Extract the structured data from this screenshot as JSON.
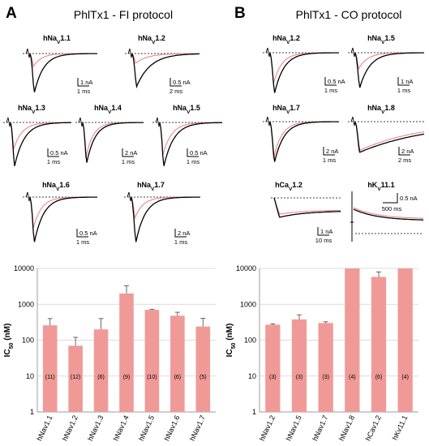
{
  "colors": {
    "control_trace": "#000000",
    "toxin_trace": "#e8888a",
    "bar": "#f09a97",
    "grid": "#d0d0d0"
  },
  "panel_a": {
    "letter": "A",
    "title": "PhlTx1 - FI protocol",
    "traces": [
      {
        "channel": "hNaV1.1",
        "label_main": "hNa",
        "label_sub": "V",
        "label_rest": "1.1",
        "scale_current": "1 nA",
        "scale_time": "1 ms"
      },
      {
        "channel": "hNaV1.2",
        "label_main": "hNa",
        "label_sub": "V",
        "label_rest": "1.2",
        "scale_current": "0.5 nA",
        "scale_time": "2 ms"
      },
      {
        "channel": "hNaV1.3",
        "label_main": "hNa",
        "label_sub": "V",
        "label_rest": "1.3",
        "scale_current": "0.5 nA",
        "scale_time": "1 ms"
      },
      {
        "channel": "hNaV1.4",
        "label_main": "hNa",
        "label_sub": "V",
        "label_rest": "1.4",
        "scale_current": "2 nA",
        "scale_time": "1 ms"
      },
      {
        "channel": "hNaV1.5",
        "label_main": "hNa",
        "label_sub": "V",
        "label_rest": "1.5",
        "scale_current": "0.5 nA",
        "scale_time": "1 ms"
      },
      {
        "channel": "hNaV1.6",
        "label_main": "hNa",
        "label_sub": "V",
        "label_rest": "1.6",
        "scale_current": "0.5 nA",
        "scale_time": "1 ms"
      },
      {
        "channel": "hNaV1.7",
        "label_main": "hNa",
        "label_sub": "V",
        "label_rest": "1.7",
        "scale_current": "2 nA",
        "scale_time": "1 ms"
      }
    ]
  },
  "panel_b": {
    "letter": "B",
    "title": "PhlTx1 - CO protocol",
    "traces": [
      {
        "channel": "hNaV1.2",
        "label_main": "hNa",
        "label_sub": "V",
        "label_rest": "1.2",
        "scale_current": "0.5 nA",
        "scale_time": "1 ms"
      },
      {
        "channel": "hNaV1.5",
        "label_main": "hNa",
        "label_sub": "V",
        "label_rest": "1.5",
        "scale_current": "1 nA",
        "scale_time": "1 ms"
      },
      {
        "channel": "hNaV1.7",
        "label_main": "hNa",
        "label_sub": "V",
        "label_rest": "1.7",
        "scale_current": "2 nA",
        "scale_time": "1 ms"
      },
      {
        "channel": "hNaV1.8",
        "label_main": "hNa",
        "label_sub": "V",
        "label_rest": "1.8",
        "scale_current": "2 nA",
        "scale_time": "2 ms"
      },
      {
        "channel": "hCaV1.2",
        "label_main": "hCa",
        "label_sub": "V",
        "label_rest": "1.2",
        "scale_current": "1 nA",
        "scale_time": "10 ms"
      },
      {
        "channel": "hKV11.1",
        "label_main": "hK",
        "label_sub": "V",
        "label_rest": "11.1",
        "scale_current": "0.5 nA",
        "scale_time": "500 ms"
      }
    ]
  },
  "chart_data": [
    {
      "type": "bar",
      "panel": "A",
      "ylabel_main": "IC",
      "ylabel_sub": "50",
      "ylabel_rest": " (nM)",
      "yscale": "log",
      "ylim": [
        1,
        10000
      ],
      "yticks": [
        "1",
        "10",
        "100",
        "1000",
        "10000"
      ],
      "grid": true,
      "categories": [
        "hNav1.1",
        "hNav1.2",
        "hNav1.3",
        "hNav1.4",
        "hNav1.5",
        "hNav1.6",
        "hNav1.7"
      ],
      "values": [
        260,
        70,
        200,
        2000,
        700,
        480,
        240
      ],
      "errors": [
        140,
        50,
        200,
        1300,
        30,
        120,
        170
      ],
      "n_labels": [
        "(11)",
        "(12)",
        "(6)",
        "(9)",
        "(10)",
        "(6)",
        "(5)"
      ]
    },
    {
      "type": "bar",
      "panel": "B",
      "ylabel_main": "IC",
      "ylabel_sub": "50",
      "ylabel_rest": " (nM)",
      "yscale": "log",
      "ylim": [
        1,
        10000
      ],
      "yticks": [
        "1",
        "10",
        "100",
        "1000",
        "10000"
      ],
      "grid": true,
      "categories": [
        "hNav1.2",
        "hNav1.5",
        "hNav1.7",
        "hNav1.8",
        "hCav1.2",
        "hKv11.1"
      ],
      "values": [
        270,
        380,
        300,
        10000,
        5800,
        10000
      ],
      "errors": [
        15,
        130,
        25,
        0,
        2200,
        0
      ],
      "n_labels": [
        "(3)",
        "(3)",
        "(3)",
        "(4)",
        "(6)",
        "(4)"
      ]
    }
  ]
}
